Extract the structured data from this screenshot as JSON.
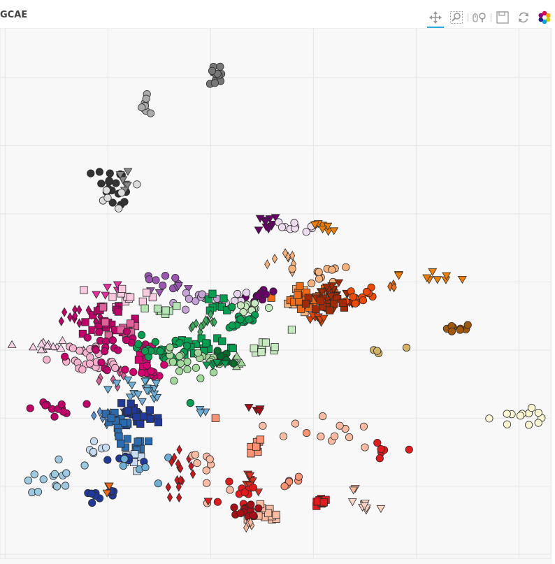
{
  "title": "GCAE",
  "toolbar": {
    "tools": [
      {
        "name": "pan-tool",
        "icon": "pan-icon",
        "active": true
      },
      {
        "name": "box-zoom-tool",
        "icon": "box-zoom-icon",
        "active": false
      },
      {
        "name": "wheel-zoom-tool",
        "icon": "wheel-zoom-icon",
        "active": false
      },
      {
        "name": "save-tool",
        "icon": "save-icon",
        "active": false
      },
      {
        "name": "reset-tool",
        "icon": "reset-icon",
        "active": false
      },
      {
        "name": "bokeh-logo",
        "icon": "bokeh-logo-icon",
        "active": false
      }
    ]
  },
  "chart_data": {
    "type": "scatter",
    "title": "GCAE",
    "xlabel": "",
    "ylabel": "",
    "grid": true,
    "xlim": [
      -0.05,
      5.31
    ],
    "ylim": [
      -0.06,
      7.73
    ],
    "marker_legend": false,
    "clusters": [
      {
        "color": "#777777",
        "marker": "circle",
        "cx": 2.07,
        "cy": 7.03,
        "sx": 0.06,
        "sy": 0.08,
        "n": 12
      },
      {
        "color": "#aaaaaa",
        "marker": "circle",
        "cx": 1.35,
        "cy": 6.55,
        "sx": 0.03,
        "sy": 0.07,
        "n": 8
      },
      {
        "color": "#333333",
        "marker": "circle",
        "cx": 1.05,
        "cy": 5.36,
        "sx": 0.12,
        "sy": 0.16,
        "n": 18
      },
      {
        "color": "#888888",
        "marker": "triangle-down",
        "cx": 1.18,
        "cy": 5.55,
        "sx": 0.06,
        "sy": 0.12,
        "n": 6
      },
      {
        "color": "#dddddd",
        "marker": "circle",
        "cx": 1.1,
        "cy": 5.2,
        "sx": 0.09,
        "sy": 0.12,
        "n": 6
      },
      {
        "color": "#6a006a",
        "marker": "triangle-down",
        "cx": 2.55,
        "cy": 4.85,
        "sx": 0.06,
        "sy": 0.05,
        "n": 10
      },
      {
        "color": "#eeddee",
        "marker": "circle",
        "cx": 2.8,
        "cy": 4.82,
        "sx": 0.08,
        "sy": 0.04,
        "n": 10
      },
      {
        "color": "#f07f00",
        "marker": "triangle-down",
        "cx": 3.08,
        "cy": 4.82,
        "sx": 0.06,
        "sy": 0.04,
        "n": 8
      },
      {
        "color": "#f07f00",
        "marker": "triangle-down",
        "cx": 4.2,
        "cy": 4.05,
        "sx": 0.2,
        "sy": 0.05,
        "n": 9
      },
      {
        "color": "#f7b27c",
        "marker": "diamond",
        "cx": 2.72,
        "cy": 4.3,
        "sx": 0.08,
        "sy": 0.08,
        "n": 8
      },
      {
        "color": "#f7b27c",
        "marker": "circle",
        "cx": 3.05,
        "cy": 4.1,
        "sx": 0.1,
        "sy": 0.1,
        "n": 12
      },
      {
        "color": "#f7b27c",
        "marker": "square",
        "cx": 2.92,
        "cy": 3.7,
        "sx": 0.09,
        "sy": 0.1,
        "n": 14
      },
      {
        "color": "#f16913",
        "marker": "square",
        "cx": 2.98,
        "cy": 3.78,
        "sx": 0.12,
        "sy": 0.1,
        "n": 20
      },
      {
        "color": "#a32a00",
        "marker": "triangle-down",
        "cx": 3.22,
        "cy": 3.82,
        "sx": 0.11,
        "sy": 0.1,
        "n": 28
      },
      {
        "color": "#f14a00",
        "marker": "circle",
        "cx": 3.45,
        "cy": 3.78,
        "sx": 0.08,
        "sy": 0.07,
        "n": 14
      },
      {
        "color": "#a32a00",
        "marker": "square",
        "cx": 3.15,
        "cy": 3.7,
        "sx": 0.14,
        "sy": 0.06,
        "n": 12
      },
      {
        "color": "#e04000",
        "marker": "triangle-down",
        "cx": 3.05,
        "cy": 3.48,
        "sx": 0.06,
        "sy": 0.05,
        "n": 8
      },
      {
        "color": "#f16913",
        "marker": "diamond",
        "cx": 3.78,
        "cy": 3.95,
        "sx": 0.03,
        "sy": 0.03,
        "n": 3
      },
      {
        "color": "#a0580a",
        "marker": "circle",
        "cx": 4.4,
        "cy": 3.32,
        "sx": 0.05,
        "sy": 0.04,
        "n": 8
      },
      {
        "color": "#d2b464",
        "marker": "circle",
        "cx": 3.8,
        "cy": 2.98,
        "sx": 0.15,
        "sy": 0.03,
        "n": 4
      },
      {
        "color": "#fcf6d2",
        "marker": "circle",
        "cx": 4.92,
        "cy": 2.03,
        "sx": 0.15,
        "sy": 0.1,
        "n": 12
      },
      {
        "color": "#9a56b0",
        "marker": "circle",
        "cx": 1.45,
        "cy": 4.02,
        "sx": 0.12,
        "sy": 0.06,
        "n": 8
      },
      {
        "color": "#9a56b0",
        "marker": "triangle-down",
        "cx": 1.5,
        "cy": 3.93,
        "sx": 0.12,
        "sy": 0.05,
        "n": 5
      },
      {
        "color": "#c7a2d6",
        "marker": "circle",
        "cx": 1.95,
        "cy": 3.72,
        "sx": 0.16,
        "sy": 0.08,
        "n": 12
      },
      {
        "color": "#6a006a",
        "marker": "circle",
        "cx": 2.45,
        "cy": 3.8,
        "sx": 0.08,
        "sy": 0.06,
        "n": 10
      },
      {
        "color": "#e7d4ec",
        "marker": "circle",
        "cx": 2.3,
        "cy": 3.75,
        "sx": 0.1,
        "sy": 0.06,
        "n": 6
      },
      {
        "color": "#e62da0",
        "marker": "triangle-down",
        "cx": 1.03,
        "cy": 3.88,
        "sx": 0.07,
        "sy": 0.05,
        "n": 5
      },
      {
        "color": "#fbc9e0",
        "marker": "square",
        "cx": 1.12,
        "cy": 3.75,
        "sx": 0.13,
        "sy": 0.08,
        "n": 14
      },
      {
        "color": "#c2006a",
        "marker": "diamond",
        "cx": 0.75,
        "cy": 3.5,
        "sx": 0.12,
        "sy": 0.08,
        "n": 14
      },
      {
        "color": "#c2006a",
        "marker": "square",
        "cx": 0.95,
        "cy": 3.44,
        "sx": 0.14,
        "sy": 0.1,
        "n": 20
      },
      {
        "color": "#e0609a",
        "marker": "square",
        "cx": 1.1,
        "cy": 3.3,
        "sx": 0.12,
        "sy": 0.12,
        "n": 14
      },
      {
        "color": "#fcd2e8",
        "marker": "triangle",
        "cx": 0.4,
        "cy": 3.04,
        "sx": 0.14,
        "sy": 0.04,
        "n": 14
      },
      {
        "color": "#f6b2cf",
        "marker": "circle",
        "cx": 0.85,
        "cy": 2.85,
        "sx": 0.18,
        "sy": 0.12,
        "n": 30
      },
      {
        "color": "#c2006a",
        "marker": "circle",
        "cx": 0.98,
        "cy": 3.1,
        "sx": 0.16,
        "sy": 0.15,
        "n": 20
      },
      {
        "color": "#c2006a",
        "marker": "circle",
        "cx": 0.45,
        "cy": 2.15,
        "sx": 0.15,
        "sy": 0.05,
        "n": 12
      },
      {
        "color": "#e0609a",
        "marker": "diamond",
        "cx": 1.05,
        "cy": 2.6,
        "sx": 0.1,
        "sy": 0.12,
        "n": 10
      },
      {
        "color": "#d4006e",
        "marker": "square",
        "cx": 1.32,
        "cy": 2.85,
        "sx": 0.06,
        "sy": 0.12,
        "n": 8
      },
      {
        "color": "#b4e6b4",
        "marker": "square",
        "cx": 1.55,
        "cy": 3.6,
        "sx": 0.09,
        "sy": 0.05,
        "n": 8
      },
      {
        "color": "#00a050",
        "marker": "square",
        "cx": 2.05,
        "cy": 3.65,
        "sx": 0.08,
        "sy": 0.06,
        "n": 8
      },
      {
        "color": "#c7e9c0",
        "marker": "circle",
        "cx": 2.36,
        "cy": 3.6,
        "sx": 0.08,
        "sy": 0.06,
        "n": 12
      },
      {
        "color": "#00a050",
        "marker": "circle",
        "cx": 2.3,
        "cy": 3.45,
        "sx": 0.1,
        "sy": 0.08,
        "n": 16
      },
      {
        "color": "#41ab5d",
        "marker": "diamond",
        "cx": 1.95,
        "cy": 3.4,
        "sx": 0.1,
        "sy": 0.06,
        "n": 12
      },
      {
        "color": "#00a050",
        "marker": "square",
        "cx": 1.85,
        "cy": 3.02,
        "sx": 0.14,
        "sy": 0.08,
        "n": 20
      },
      {
        "color": "#00a050",
        "marker": "circle",
        "cx": 1.55,
        "cy": 3.0,
        "sx": 0.13,
        "sy": 0.1,
        "n": 24
      },
      {
        "color": "#a1d99b",
        "marker": "circle",
        "cx": 1.82,
        "cy": 2.85,
        "sx": 0.15,
        "sy": 0.1,
        "n": 24
      },
      {
        "color": "#c7e9c0",
        "marker": "square",
        "cx": 2.53,
        "cy": 3.0,
        "sx": 0.06,
        "sy": 0.06,
        "n": 8
      },
      {
        "color": "#a1d99b",
        "marker": "triangle",
        "cx": 2.3,
        "cy": 2.82,
        "sx": 0.06,
        "sy": 0.04,
        "n": 5
      },
      {
        "color": "#006d2c",
        "marker": "circle",
        "cx": 2.15,
        "cy": 2.9,
        "sx": 0.06,
        "sy": 0.06,
        "n": 10
      },
      {
        "color": "#00a050",
        "marker": "triangle-down",
        "cx": 2.05,
        "cy": 2.8,
        "sx": 0.06,
        "sy": 0.04,
        "n": 6
      },
      {
        "color": "#d4006e",
        "marker": "circle",
        "cx": 1.4,
        "cy": 2.68,
        "sx": 0.1,
        "sy": 0.08,
        "n": 12
      },
      {
        "color": "#6baed6",
        "marker": "triangle-down",
        "cx": 1.3,
        "cy": 2.35,
        "sx": 0.14,
        "sy": 0.1,
        "n": 20
      },
      {
        "color": "#5a8ecf",
        "marker": "diamond",
        "cx": 0.95,
        "cy": 2.05,
        "sx": 0.05,
        "sy": 0.06,
        "n": 6
      },
      {
        "color": "#1f3a9a",
        "marker": "square",
        "cx": 1.28,
        "cy": 2.02,
        "sx": 0.1,
        "sy": 0.07,
        "n": 30
      },
      {
        "color": "#2b6cb0",
        "marker": "square",
        "cx": 1.05,
        "cy": 1.95,
        "sx": 0.08,
        "sy": 0.07,
        "n": 10
      },
      {
        "color": "#2b6cb0",
        "marker": "square",
        "cx": 1.22,
        "cy": 1.58,
        "sx": 0.12,
        "sy": 0.08,
        "n": 12
      },
      {
        "color": "#c6dbef",
        "marker": "circle",
        "cx": 0.88,
        "cy": 1.58,
        "sx": 0.05,
        "sy": 0.04,
        "n": 6
      },
      {
        "color": "#c6dbef",
        "marker": "square",
        "cx": 1.2,
        "cy": 1.35,
        "sx": 0.06,
        "sy": 0.07,
        "n": 6
      },
      {
        "color": "#1f3a9a",
        "marker": "circle",
        "cx": 1.15,
        "cy": 1.4,
        "sx": 0.12,
        "sy": 0.04,
        "n": 6
      },
      {
        "color": "#6baed6",
        "marker": "circle",
        "cx": 1.3,
        "cy": 1.3,
        "sx": 0.18,
        "sy": 0.1,
        "n": 6
      },
      {
        "color": "#9ecae1",
        "marker": "circle",
        "cx": 0.5,
        "cy": 1.08,
        "sx": 0.2,
        "sy": 0.15,
        "n": 14
      },
      {
        "color": "#1f3a9a",
        "marker": "circle",
        "cx": 0.92,
        "cy": 0.87,
        "sx": 0.08,
        "sy": 0.07,
        "n": 10
      },
      {
        "color": "#f16913",
        "marker": "triangle-down",
        "cx": 1.0,
        "cy": 0.98,
        "sx": 0.02,
        "sy": 0.04,
        "n": 3
      },
      {
        "color": "#00a050",
        "marker": "circle",
        "cx": 1.8,
        "cy": 2.22,
        "sx": 0.02,
        "sy": 0.02,
        "n": 1
      },
      {
        "color": "#6baed6",
        "marker": "triangle-down",
        "cx": 1.92,
        "cy": 2.12,
        "sx": 0.04,
        "sy": 0.05,
        "n": 3
      },
      {
        "color": "#fc9272",
        "marker": "square",
        "cx": 2.03,
        "cy": 2.0,
        "sx": 0.02,
        "sy": 0.02,
        "n": 1
      },
      {
        "color": "#a50f15",
        "marker": "triangle-down",
        "cx": 2.48,
        "cy": 2.15,
        "sx": 0.05,
        "sy": 0.05,
        "n": 5
      },
      {
        "color": "#cb181d",
        "marker": "diamond",
        "cx": 1.7,
        "cy": 1.2,
        "sx": 0.06,
        "sy": 0.15,
        "n": 16
      },
      {
        "color": "#fcbba1",
        "marker": "circle",
        "cx": 2.0,
        "cy": 1.25,
        "sx": 0.1,
        "sy": 0.15,
        "n": 10
      },
      {
        "color": "#fc9272",
        "marker": "square",
        "cx": 2.42,
        "cy": 1.58,
        "sx": 0.04,
        "sy": 0.06,
        "n": 8
      },
      {
        "color": "#d7301f",
        "marker": "triangle-down",
        "cx": 2.4,
        "cy": 1.08,
        "sx": 0.05,
        "sy": 0.1,
        "n": 8
      },
      {
        "color": "#fcbba1",
        "marker": "circle",
        "cx": 3.18,
        "cy": 1.78,
        "sx": 0.28,
        "sy": 0.14,
        "n": 12
      },
      {
        "color": "#e31a1c",
        "marker": "circle",
        "cx": 3.72,
        "cy": 1.52,
        "sx": 0.1,
        "sy": 0.06,
        "n": 6
      },
      {
        "color": "#fc9272",
        "marker": "circle",
        "cx": 2.8,
        "cy": 1.05,
        "sx": 0.1,
        "sy": 0.05,
        "n": 6
      },
      {
        "color": "#e31a1c",
        "marker": "circle",
        "cx": 2.28,
        "cy": 0.95,
        "sx": 0.1,
        "sy": 0.08,
        "n": 8
      },
      {
        "color": "#fcbba1",
        "marker": "square",
        "cx": 2.55,
        "cy": 0.65,
        "sx": 0.08,
        "sy": 0.08,
        "n": 12
      },
      {
        "color": "#e31a1c",
        "marker": "square",
        "cx": 3.07,
        "cy": 0.75,
        "sx": 0.04,
        "sy": 0.05,
        "n": 10
      },
      {
        "color": "#a50f15",
        "marker": "circle",
        "cx": 2.38,
        "cy": 0.62,
        "sx": 0.08,
        "sy": 0.08,
        "n": 16
      },
      {
        "color": "#fcd2c4",
        "marker": "triangle-down",
        "cx": 3.55,
        "cy": 0.72,
        "sx": 0.1,
        "sy": 0.06,
        "n": 8
      },
      {
        "color": "#fcbba1",
        "marker": "diamond",
        "cx": 2.38,
        "cy": 0.42,
        "sx": 0.03,
        "sy": 0.06,
        "n": 4
      },
      {
        "color": "#fcbba1",
        "marker": "triangle-down",
        "cx": 3.38,
        "cy": 0.92,
        "sx": 0.04,
        "sy": 0.03,
        "n": 2
      },
      {
        "color": "#e31a1c",
        "marker": "triangle-down",
        "cx": 1.98,
        "cy": 0.82,
        "sx": 0.02,
        "sy": 0.02,
        "n": 1
      },
      {
        "color": "#e31a1c",
        "marker": "circle",
        "cx": 2.05,
        "cy": 0.78,
        "sx": 0.02,
        "sy": 0.02,
        "n": 1
      },
      {
        "color": "#fc9272",
        "marker": "circle",
        "cx": 2.9,
        "cy": 1.78,
        "sx": 0.02,
        "sy": 0.02,
        "n": 1
      },
      {
        "color": "#c7e9c0",
        "marker": "square",
        "cx": 2.78,
        "cy": 3.3,
        "sx": 0.02,
        "sy": 0.02,
        "n": 1
      }
    ]
  }
}
